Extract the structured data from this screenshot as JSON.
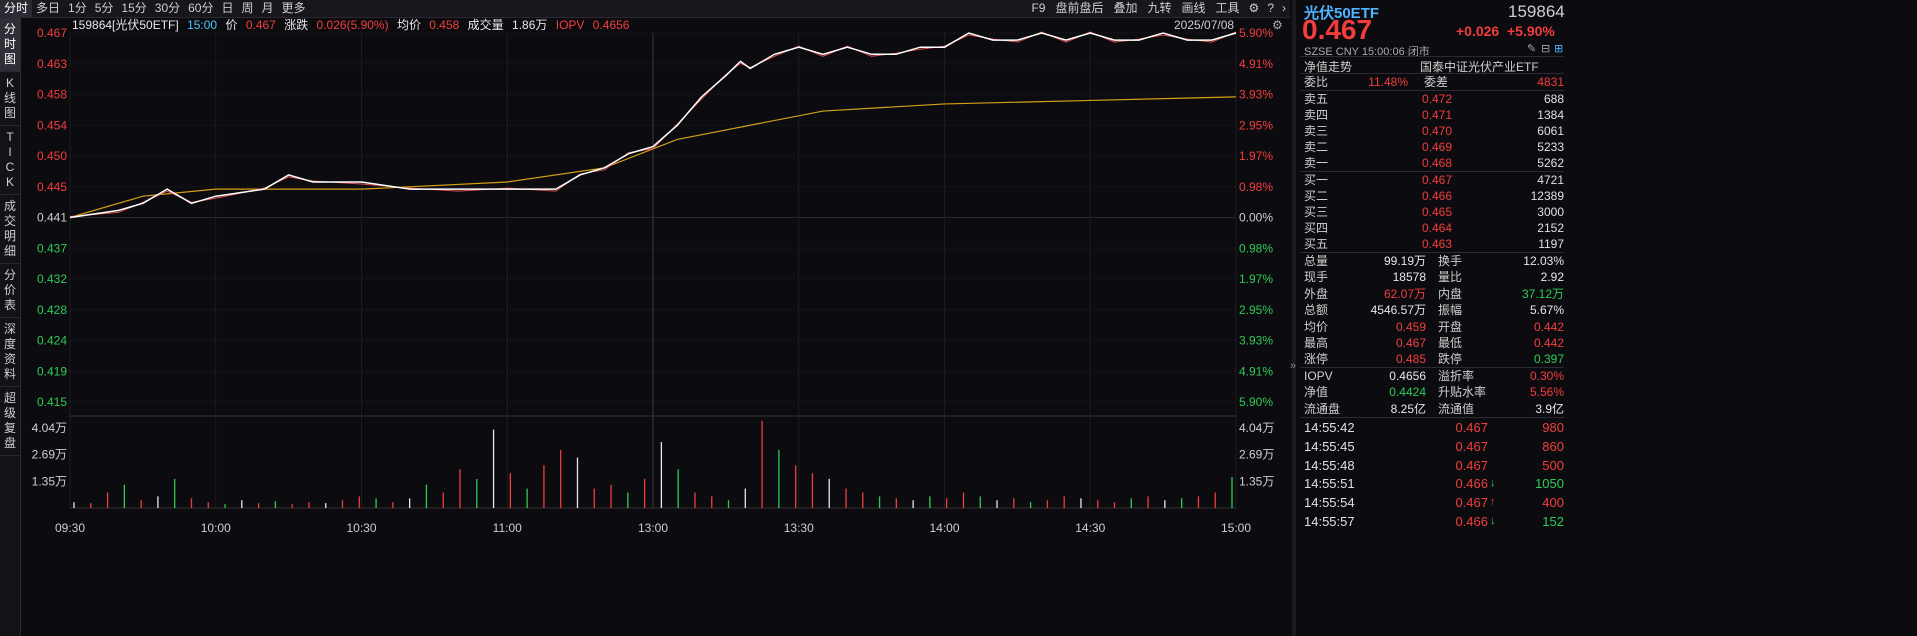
{
  "toolbar": {
    "periods": [
      "分时",
      "多日",
      "1分",
      "5分",
      "15分",
      "30分",
      "60分",
      "日",
      "周",
      "月",
      "更多"
    ],
    "active_period": "分时",
    "tools": [
      "F9",
      "盘前盘后",
      "叠加",
      "九转",
      "画线",
      "工具"
    ],
    "icons": [
      "gear-icon",
      "help-icon",
      "chevron-right-icon"
    ]
  },
  "left_tabs": [
    "分\n时\n图",
    "K\n线\n图",
    "T\nI\nC\nK",
    "成\n交\n明\n细",
    "分\n价\n表",
    "深\n度\n资\n料",
    "超\n级\n复\n盘"
  ],
  "chart_info": {
    "code_name": "159864[光伏50ETF]",
    "time": "15:00",
    "price_label": "价",
    "price": "0.467",
    "change_label": "涨跌",
    "change": "0.026(5.90%)",
    "avg_label": "均价",
    "avg": "0.458",
    "vol_label": "成交量",
    "vol": "1.86万",
    "iopv_label": "IOPV",
    "iopv": "0.4656",
    "date": "2025/07/08"
  },
  "colors": {
    "up": "#f23d3d",
    "down": "#2ecc55",
    "price_line": "#ffffff",
    "avg_line": "#d4a017",
    "iopv_line": "#e05050",
    "background": "#0c0c10",
    "grid": "#2a2a2a"
  },
  "chart_data": {
    "type": "line",
    "x_ticks": [
      "09:30",
      "10:00",
      "10:30",
      "11:00",
      "13:00",
      "13:30",
      "14:00",
      "14:30",
      "15:00"
    ],
    "prev_close": 0.441,
    "left_ticks": [
      "0.467",
      "0.463",
      "0.458",
      "0.454",
      "0.450",
      "0.445",
      "0.441",
      "0.437",
      "0.432",
      "0.428",
      "0.424",
      "0.419",
      "0.415"
    ],
    "right_ticks": [
      "5.90%",
      "4.91%",
      "3.93%",
      "2.95%",
      "1.97%",
      "0.98%",
      "0.00%",
      "0.98%",
      "1.97%",
      "2.95%",
      "3.93%",
      "4.91%",
      "5.90%"
    ],
    "volume_ticks": [
      "4.04万",
      "2.69万",
      "1.35万"
    ],
    "ylim": [
      0.415,
      0.467
    ],
    "price_series": [
      [
        0,
        0.441
      ],
      [
        10,
        0.442
      ],
      [
        15,
        0.443
      ],
      [
        20,
        0.445
      ],
      [
        25,
        0.443
      ],
      [
        30,
        0.444
      ],
      [
        40,
        0.445
      ],
      [
        45,
        0.447
      ],
      [
        50,
        0.446
      ],
      [
        60,
        0.446
      ],
      [
        70,
        0.445
      ],
      [
        80,
        0.445
      ],
      [
        90,
        0.445
      ],
      [
        100,
        0.445
      ],
      [
        105,
        0.447
      ],
      [
        110,
        0.448
      ],
      [
        115,
        0.45
      ],
      [
        120,
        0.451
      ],
      [
        125,
        0.454
      ],
      [
        130,
        0.458
      ],
      [
        135,
        0.461
      ],
      [
        138,
        0.463
      ],
      [
        140,
        0.462
      ],
      [
        145,
        0.464
      ],
      [
        150,
        0.465
      ],
      [
        155,
        0.464
      ],
      [
        160,
        0.465
      ],
      [
        165,
        0.464
      ],
      [
        170,
        0.464
      ],
      [
        175,
        0.465
      ],
      [
        180,
        0.465
      ],
      [
        185,
        0.467
      ],
      [
        190,
        0.466
      ],
      [
        195,
        0.466
      ],
      [
        200,
        0.467
      ],
      [
        205,
        0.466
      ],
      [
        210,
        0.467
      ],
      [
        215,
        0.466
      ],
      [
        220,
        0.466
      ],
      [
        225,
        0.467
      ],
      [
        230,
        0.466
      ],
      [
        235,
        0.466
      ],
      [
        240,
        0.467
      ]
    ],
    "avg_series": [
      [
        0,
        0.441
      ],
      [
        15,
        0.444
      ],
      [
        30,
        0.445
      ],
      [
        60,
        0.445
      ],
      [
        90,
        0.446
      ],
      [
        110,
        0.448
      ],
      [
        125,
        0.452
      ],
      [
        140,
        0.454
      ],
      [
        155,
        0.456
      ],
      [
        180,
        0.457
      ],
      [
        210,
        0.4575
      ],
      [
        240,
        0.458
      ]
    ],
    "volume_series": [
      3000,
      2500,
      8000,
      12000,
      4000,
      6000,
      15000,
      5000,
      3000,
      2000,
      4000,
      2500,
      3500,
      2000,
      3000,
      2500,
      4000,
      6000,
      5000,
      3000,
      5000,
      12000,
      8000,
      20000,
      15000,
      40400,
      18000,
      10000,
      22000,
      30000,
      26000,
      10000,
      12000,
      8000,
      15000,
      34000,
      20000,
      8000,
      6000,
      4000,
      10000,
      45000,
      30000,
      22000,
      18000,
      15000,
      10000,
      8000,
      6000,
      5000,
      4000,
      6000,
      5000,
      8000,
      6000,
      4000,
      5000,
      3000,
      4000,
      6000,
      5000,
      4000,
      3000,
      5000,
      6000,
      4000,
      5000,
      6000,
      8000,
      16000
    ]
  },
  "panel": {
    "name": "光伏50ETF",
    "code": "159864",
    "price": "0.467",
    "change": "+0.026",
    "change_pct": "+5.90%",
    "market": "SZSE",
    "currency": "CNY",
    "time": "15:00:06",
    "status": "闭市",
    "nav_title": "净值走势",
    "fund_full_name": "国泰中证光伏产业ETF",
    "ratio_label": "委比",
    "ratio": "11.48%",
    "diff_label": "委差",
    "diff": "4831",
    "asks": [
      {
        "label": "卖五",
        "price": "0.472",
        "vol": "688"
      },
      {
        "label": "卖四",
        "price": "0.471",
        "vol": "1384"
      },
      {
        "label": "卖三",
        "price": "0.470",
        "vol": "6061"
      },
      {
        "label": "卖二",
        "price": "0.469",
        "vol": "5233"
      },
      {
        "label": "卖一",
        "price": "0.468",
        "vol": "5262"
      }
    ],
    "bids": [
      {
        "label": "买一",
        "price": "0.467",
        "vol": "4721"
      },
      {
        "label": "买二",
        "price": "0.466",
        "vol": "12389"
      },
      {
        "label": "买三",
        "price": "0.465",
        "vol": "3000"
      },
      {
        "label": "买四",
        "price": "0.464",
        "vol": "2152"
      },
      {
        "label": "买五",
        "price": "0.463",
        "vol": "1197"
      }
    ],
    "stats": [
      {
        "l1": "总量",
        "v1": "99.19万",
        "c1": "white",
        "l2": "换手",
        "v2": "12.03%",
        "c2": "white"
      },
      {
        "l1": "现手",
        "v1": "18578",
        "c1": "white",
        "l2": "量比",
        "v2": "2.92",
        "c2": "white"
      },
      {
        "l1": "外盘",
        "v1": "62.07万",
        "c1": "red",
        "l2": "内盘",
        "v2": "37.12万",
        "c2": "green"
      },
      {
        "l1": "总额",
        "v1": "4546.57万",
        "c1": "white",
        "l2": "振幅",
        "v2": "5.67%",
        "c2": "white"
      },
      {
        "l1": "均价",
        "v1": "0.459",
        "c1": "red",
        "l2": "开盘",
        "v2": "0.442",
        "c2": "red"
      },
      {
        "l1": "最高",
        "v1": "0.467",
        "c1": "red",
        "l2": "最低",
        "v2": "0.442",
        "c2": "red"
      },
      {
        "l1": "涨停",
        "v1": "0.485",
        "c1": "red",
        "l2": "跌停",
        "v2": "0.397",
        "c2": "green"
      }
    ],
    "stats2": [
      {
        "l1": "IOPV",
        "v1": "0.4656",
        "c1": "white",
        "l2": "溢折率",
        "v2": "0.30%",
        "c2": "red"
      },
      {
        "l1": "净值",
        "v1": "0.4424",
        "c1": "green",
        "l2": "升贴水率",
        "v2": "5.56%",
        "c2": "red"
      },
      {
        "l1": "流通盘",
        "v1": "8.25亿",
        "c1": "white",
        "l2": "流通值",
        "v2": "3.9亿",
        "c2": "white"
      }
    ],
    "ticks": [
      {
        "time": "14:55:42",
        "price": "0.467",
        "dir": "",
        "vol": "980",
        "pc": "red",
        "vc": "red"
      },
      {
        "time": "14:55:45",
        "price": "0.467",
        "dir": "",
        "vol": "860",
        "pc": "red",
        "vc": "red"
      },
      {
        "time": "14:55:48",
        "price": "0.467",
        "dir": "",
        "vol": "500",
        "pc": "red",
        "vc": "red"
      },
      {
        "time": "14:55:51",
        "price": "0.466",
        "dir": "↓",
        "vol": "1050",
        "pc": "red",
        "vc": "green"
      },
      {
        "time": "14:55:54",
        "price": "0.467",
        "dir": "↑",
        "vol": "400",
        "pc": "red",
        "vc": "red"
      },
      {
        "time": "14:55:57",
        "price": "0.466",
        "dir": "↓",
        "vol": "152",
        "pc": "red",
        "vc": "green"
      }
    ]
  }
}
